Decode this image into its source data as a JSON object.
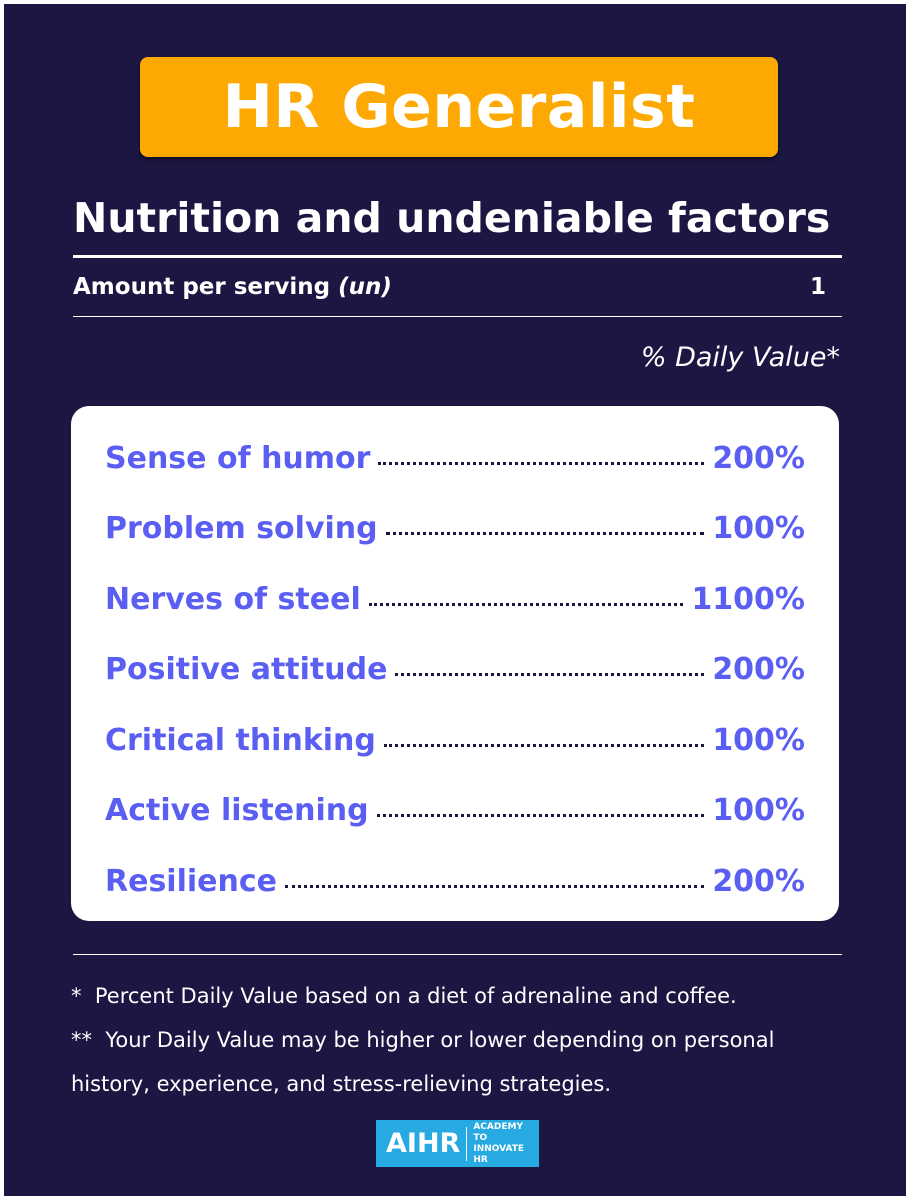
{
  "header": {
    "title": "HR Generalist",
    "subtitle": "Nutrition and undeniable factors"
  },
  "serving": {
    "label": "Amount per serving",
    "unit": "(un)",
    "amount": "1"
  },
  "daily_value_header": "% Daily Value*",
  "items": [
    {
      "name": "Sense of humor",
      "value": "200%"
    },
    {
      "name": "Problem solving",
      "value": "100%"
    },
    {
      "name": "Nerves of steel",
      "value": "1100%"
    },
    {
      "name": "Positive attitude",
      "value": "200%"
    },
    {
      "name": "Critical thinking",
      "value": "100%"
    },
    {
      "name": "Active listening",
      "value": "100%"
    },
    {
      "name": "Resilience",
      "value": "200%"
    }
  ],
  "footnotes": [
    {
      "marker": "*",
      "text": "Percent Daily Value based on a diet of adrenaline and coffee."
    },
    {
      "marker": "**",
      "text": "Your Daily Value may be higher or lower depending on personal history, experience, and stress-relieving strategies."
    }
  ],
  "logo": {
    "name": "AIHR",
    "tagline": "ACADEMY TO INNOVATE HR"
  }
}
